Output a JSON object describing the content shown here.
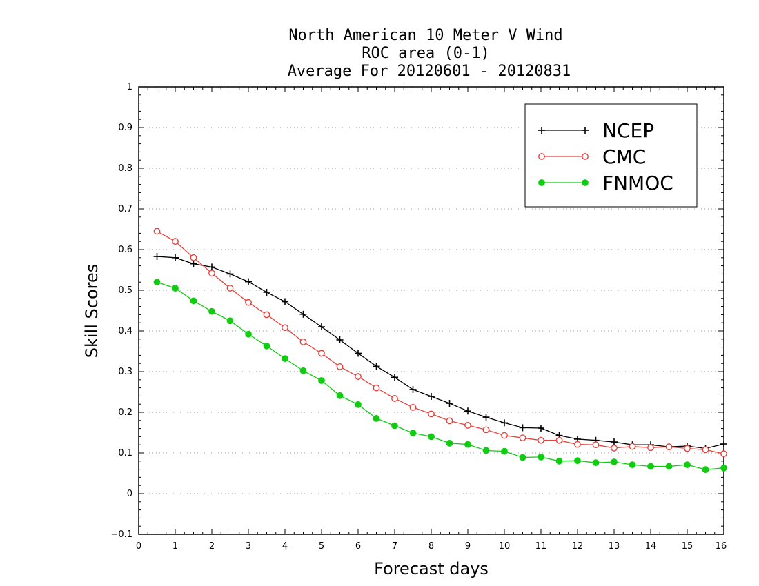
{
  "chart_data": {
    "type": "line",
    "title_lines": [
      "North American 10 Meter V Wind",
      "ROC area (0-1)",
      "Average For 20120601 - 20120831"
    ],
    "xlabel": "Forecast days",
    "ylabel": "Skill Scores",
    "xlim": [
      0,
      16
    ],
    "ylim": [
      -0.1,
      1
    ],
    "x_ticks": [
      "0",
      "1",
      "2",
      "3",
      "4",
      "5",
      "6",
      "7",
      "8",
      "9",
      "10",
      "11",
      "12",
      "13",
      "14",
      "15",
      "16"
    ],
    "y_ticks": [
      "-0.1",
      "0",
      "0.1",
      "0.2",
      "0.3",
      "0.4",
      "0.5",
      "0.6",
      "0.7",
      "0.8",
      "0.9",
      "1"
    ],
    "grid": "horizontal dotted",
    "legend_position": "top-right",
    "x": [
      0.5,
      1,
      1.5,
      2,
      2.5,
      3,
      3.5,
      4,
      4.5,
      5,
      5.5,
      6,
      6.5,
      7,
      7.5,
      8,
      8.5,
      9,
      9.5,
      10,
      10.5,
      11,
      11.5,
      12,
      12.5,
      13,
      13.5,
      14,
      14.5,
      15,
      15.5,
      16
    ],
    "series": [
      {
        "name": "NCEP",
        "color": "#000000",
        "marker": "plus",
        "values": [
          0.583,
          0.58,
          0.565,
          0.557,
          0.54,
          0.521,
          0.495,
          0.472,
          0.441,
          0.41,
          0.378,
          0.345,
          0.313,
          0.286,
          0.256,
          0.239,
          0.222,
          0.203,
          0.188,
          0.174,
          0.162,
          0.161,
          0.143,
          0.134,
          0.131,
          0.127,
          0.12,
          0.12,
          0.115,
          0.117,
          0.111,
          0.122
        ]
      },
      {
        "name": "CMC",
        "color": "#e8413c",
        "marker": "open-circle",
        "values": [
          0.645,
          0.62,
          0.58,
          0.542,
          0.505,
          0.47,
          0.44,
          0.408,
          0.373,
          0.345,
          0.312,
          0.288,
          0.26,
          0.234,
          0.212,
          0.196,
          0.179,
          0.168,
          0.157,
          0.143,
          0.137,
          0.131,
          0.131,
          0.121,
          0.12,
          0.112,
          0.116,
          0.113,
          0.115,
          0.111,
          0.108,
          0.098
        ]
      },
      {
        "name": "FNMOC",
        "color": "#11cc11",
        "marker": "filled-circle",
        "values": [
          0.52,
          0.505,
          0.474,
          0.448,
          0.425,
          0.392,
          0.363,
          0.332,
          0.302,
          0.278,
          0.241,
          0.219,
          0.185,
          0.167,
          0.149,
          0.14,
          0.124,
          0.121,
          0.106,
          0.104,
          0.089,
          0.09,
          0.08,
          0.081,
          0.076,
          0.078,
          0.071,
          0.067,
          0.067,
          0.071,
          0.059,
          0.063
        ]
      }
    ]
  }
}
